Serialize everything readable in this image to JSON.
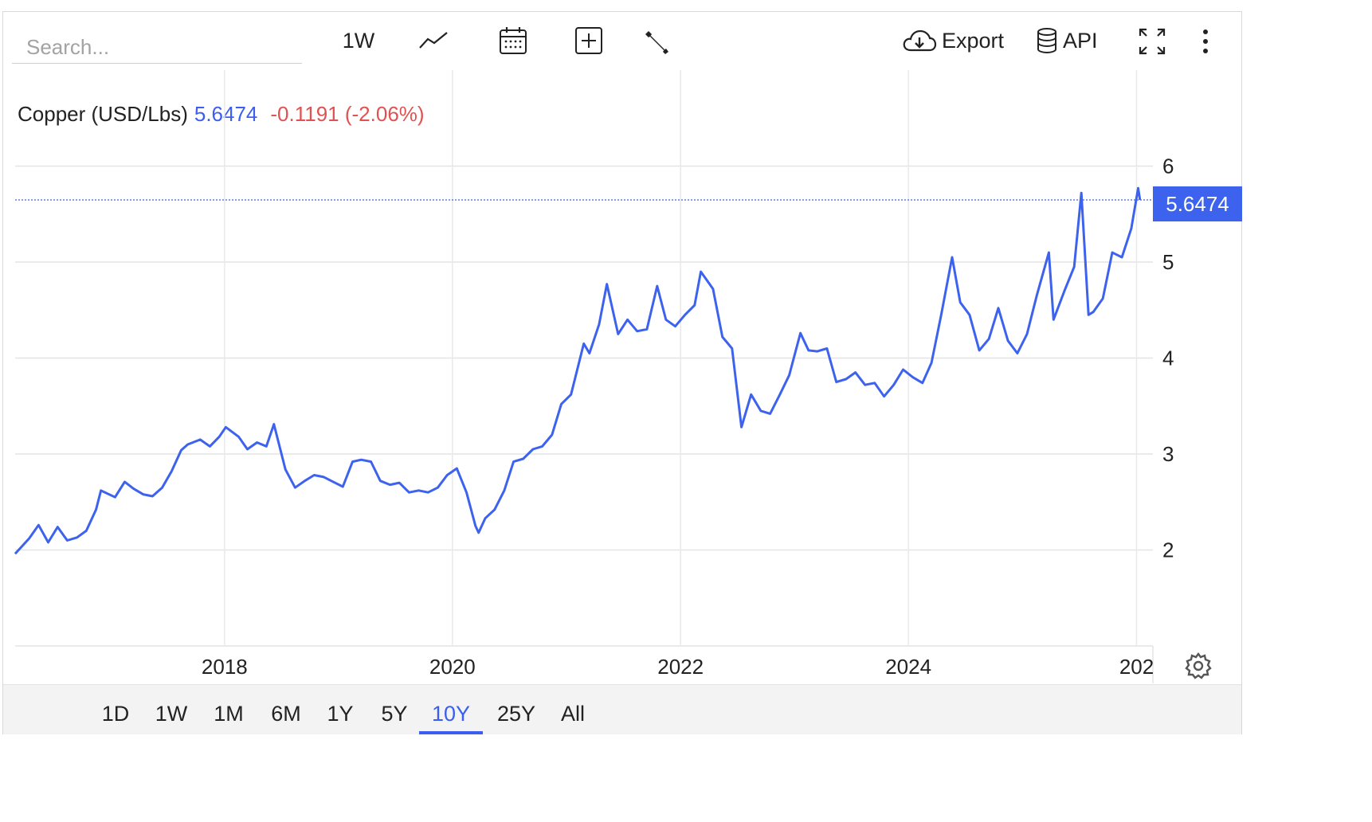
{
  "toolbar": {
    "search_placeholder": "Search...",
    "frequency_label": "1W",
    "export_label": "Export",
    "api_label": "API",
    "icons": [
      "line-chart-icon",
      "calendar-icon",
      "plus-box-icon",
      "wrench-icon",
      "cloud-download-icon",
      "database-icon",
      "fullscreen-icon",
      "more-vertical-icon"
    ]
  },
  "header": {
    "instrument": "Copper (USD/Lbs)",
    "price": "5.6474",
    "change": "-0.1191 (-2.06%)"
  },
  "price_tag": "5.6474",
  "range_buttons": [
    "1D",
    "1W",
    "1M",
    "6M",
    "1Y",
    "5Y",
    "10Y",
    "25Y",
    "All"
  ],
  "active_range": "10Y",
  "colors": {
    "line": "#3d63ee",
    "negative": "#e05252",
    "accent": "#3b5ef0"
  },
  "chart_data": {
    "type": "line",
    "title": "",
    "xlabel": "",
    "ylabel": "",
    "x_tick_labels": [
      "2018",
      "2020",
      "2022",
      "2024",
      "202"
    ],
    "y_tick_labels": [
      "2",
      "3",
      "4",
      "5",
      "6"
    ],
    "ylim": [
      1,
      7
    ],
    "xlim": [
      "2016-03-01",
      "2026-01-15"
    ],
    "grid": true,
    "legend": "none",
    "last_value": 5.6474,
    "series": [
      {
        "values": [
          [
            "2016-03-01",
            1.96
          ],
          [
            "2016-04-15",
            2.12
          ],
          [
            "2016-05-15",
            2.26
          ],
          [
            "2016-06-15",
            2.08
          ],
          [
            "2016-07-15",
            2.24
          ],
          [
            "2016-08-15",
            2.1
          ],
          [
            "2016-09-15",
            2.13
          ],
          [
            "2016-10-15",
            2.2
          ],
          [
            "2016-11-15",
            2.42
          ],
          [
            "2016-12-01",
            2.62
          ],
          [
            "2017-01-15",
            2.55
          ],
          [
            "2017-02-15",
            2.71
          ],
          [
            "2017-03-15",
            2.64
          ],
          [
            "2017-04-15",
            2.58
          ],
          [
            "2017-05-15",
            2.56
          ],
          [
            "2017-06-15",
            2.65
          ],
          [
            "2017-07-15",
            2.82
          ],
          [
            "2017-08-15",
            3.04
          ],
          [
            "2017-09-05",
            3.1
          ],
          [
            "2017-10-15",
            3.15
          ],
          [
            "2017-11-15",
            3.08
          ],
          [
            "2017-12-15",
            3.18
          ],
          [
            "2018-01-05",
            3.28
          ],
          [
            "2018-02-15",
            3.18
          ],
          [
            "2018-03-15",
            3.05
          ],
          [
            "2018-04-15",
            3.12
          ],
          [
            "2018-05-15",
            3.08
          ],
          [
            "2018-06-08",
            3.31
          ],
          [
            "2018-07-15",
            2.84
          ],
          [
            "2018-08-15",
            2.65
          ],
          [
            "2018-09-15",
            2.72
          ],
          [
            "2018-10-15",
            2.78
          ],
          [
            "2018-11-15",
            2.76
          ],
          [
            "2018-12-15",
            2.71
          ],
          [
            "2019-01-15",
            2.66
          ],
          [
            "2019-02-15",
            2.92
          ],
          [
            "2019-03-15",
            2.94
          ],
          [
            "2019-04-15",
            2.92
          ],
          [
            "2019-05-15",
            2.72
          ],
          [
            "2019-06-15",
            2.68
          ],
          [
            "2019-07-15",
            2.7
          ],
          [
            "2019-08-15",
            2.6
          ],
          [
            "2019-09-15",
            2.62
          ],
          [
            "2019-10-15",
            2.6
          ],
          [
            "2019-11-15",
            2.65
          ],
          [
            "2019-12-15",
            2.78
          ],
          [
            "2020-01-15",
            2.85
          ],
          [
            "2020-02-15",
            2.6
          ],
          [
            "2020-03-15",
            2.25
          ],
          [
            "2020-03-25",
            2.18
          ],
          [
            "2020-04-15",
            2.33
          ],
          [
            "2020-05-15",
            2.42
          ],
          [
            "2020-06-15",
            2.62
          ],
          [
            "2020-07-15",
            2.92
          ],
          [
            "2020-08-15",
            2.95
          ],
          [
            "2020-09-15",
            3.05
          ],
          [
            "2020-10-15",
            3.08
          ],
          [
            "2020-11-15",
            3.2
          ],
          [
            "2020-12-15",
            3.52
          ],
          [
            "2021-01-15",
            3.62
          ],
          [
            "2021-02-25",
            4.15
          ],
          [
            "2021-03-15",
            4.05
          ],
          [
            "2021-04-15",
            4.35
          ],
          [
            "2021-05-10",
            4.77
          ],
          [
            "2021-06-15",
            4.25
          ],
          [
            "2021-07-15",
            4.4
          ],
          [
            "2021-08-15",
            4.28
          ],
          [
            "2021-09-15",
            4.3
          ],
          [
            "2021-10-18",
            4.75
          ],
          [
            "2021-11-15",
            4.4
          ],
          [
            "2021-12-15",
            4.33
          ],
          [
            "2022-01-15",
            4.45
          ],
          [
            "2022-02-15",
            4.55
          ],
          [
            "2022-03-07",
            4.9
          ],
          [
            "2022-04-15",
            4.72
          ],
          [
            "2022-05-15",
            4.22
          ],
          [
            "2022-06-15",
            4.1
          ],
          [
            "2022-07-15",
            3.28
          ],
          [
            "2022-08-15",
            3.62
          ],
          [
            "2022-09-15",
            3.45
          ],
          [
            "2022-10-15",
            3.42
          ],
          [
            "2022-11-15",
            3.62
          ],
          [
            "2022-12-15",
            3.82
          ],
          [
            "2023-01-20",
            4.26
          ],
          [
            "2023-02-15",
            4.08
          ],
          [
            "2023-03-15",
            4.07
          ],
          [
            "2023-04-15",
            4.1
          ],
          [
            "2023-05-15",
            3.75
          ],
          [
            "2023-06-15",
            3.78
          ],
          [
            "2023-07-15",
            3.85
          ],
          [
            "2023-08-15",
            3.72
          ],
          [
            "2023-09-15",
            3.74
          ],
          [
            "2023-10-15",
            3.6
          ],
          [
            "2023-11-15",
            3.72
          ],
          [
            "2023-12-15",
            3.88
          ],
          [
            "2024-01-15",
            3.8
          ],
          [
            "2024-02-15",
            3.74
          ],
          [
            "2024-03-15",
            3.95
          ],
          [
            "2024-04-15",
            4.45
          ],
          [
            "2024-05-20",
            5.05
          ],
          [
            "2024-06-15",
            4.58
          ],
          [
            "2024-07-15",
            4.45
          ],
          [
            "2024-08-15",
            4.08
          ],
          [
            "2024-09-15",
            4.2
          ],
          [
            "2024-10-15",
            4.52
          ],
          [
            "2024-11-15",
            4.18
          ],
          [
            "2024-12-15",
            4.05
          ],
          [
            "2025-01-15",
            4.25
          ],
          [
            "2025-02-15",
            4.65
          ],
          [
            "2025-03-26",
            5.1
          ],
          [
            "2025-04-10",
            4.4
          ],
          [
            "2025-05-15",
            4.7
          ],
          [
            "2025-06-15",
            4.95
          ],
          [
            "2025-07-08",
            5.72
          ],
          [
            "2025-07-31",
            4.45
          ],
          [
            "2025-08-15",
            4.48
          ],
          [
            "2025-09-15",
            4.62
          ],
          [
            "2025-10-15",
            5.1
          ],
          [
            "2025-11-15",
            5.05
          ],
          [
            "2025-12-15",
            5.35
          ],
          [
            "2026-01-06",
            5.77
          ],
          [
            "2026-01-12",
            5.6474
          ]
        ]
      }
    ]
  }
}
